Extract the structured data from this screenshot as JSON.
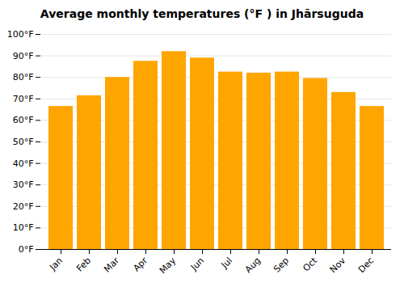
{
  "chart_data": {
    "type": "bar",
    "title": "Average monthly temperatures (°F ) in Jhārsuguda",
    "categories": [
      "Jan",
      "Feb",
      "Mar",
      "Apr",
      "May",
      "Jun",
      "Jul",
      "Aug",
      "Sep",
      "Oct",
      "Nov",
      "Dec"
    ],
    "values": [
      66.5,
      71.5,
      80,
      87.5,
      92,
      89,
      82.5,
      82,
      82.5,
      79.5,
      73,
      66.5
    ],
    "color": "#FFA500",
    "ylim": [
      0,
      100
    ],
    "yticks": [
      {
        "value": 0,
        "label": "0°F"
      },
      {
        "value": 10,
        "label": "10°F"
      },
      {
        "value": 20,
        "label": "20°F"
      },
      {
        "value": 30,
        "label": "30°F"
      },
      {
        "value": 40,
        "label": "40°F"
      },
      {
        "value": 50,
        "label": "50°F"
      },
      {
        "value": 60,
        "label": "60°F"
      },
      {
        "value": 70,
        "label": "70°F"
      },
      {
        "value": 80,
        "label": "80°F"
      },
      {
        "value": 90,
        "label": "90°F"
      },
      {
        "value": 100,
        "label": "100°F"
      }
    ],
    "grid": true
  }
}
